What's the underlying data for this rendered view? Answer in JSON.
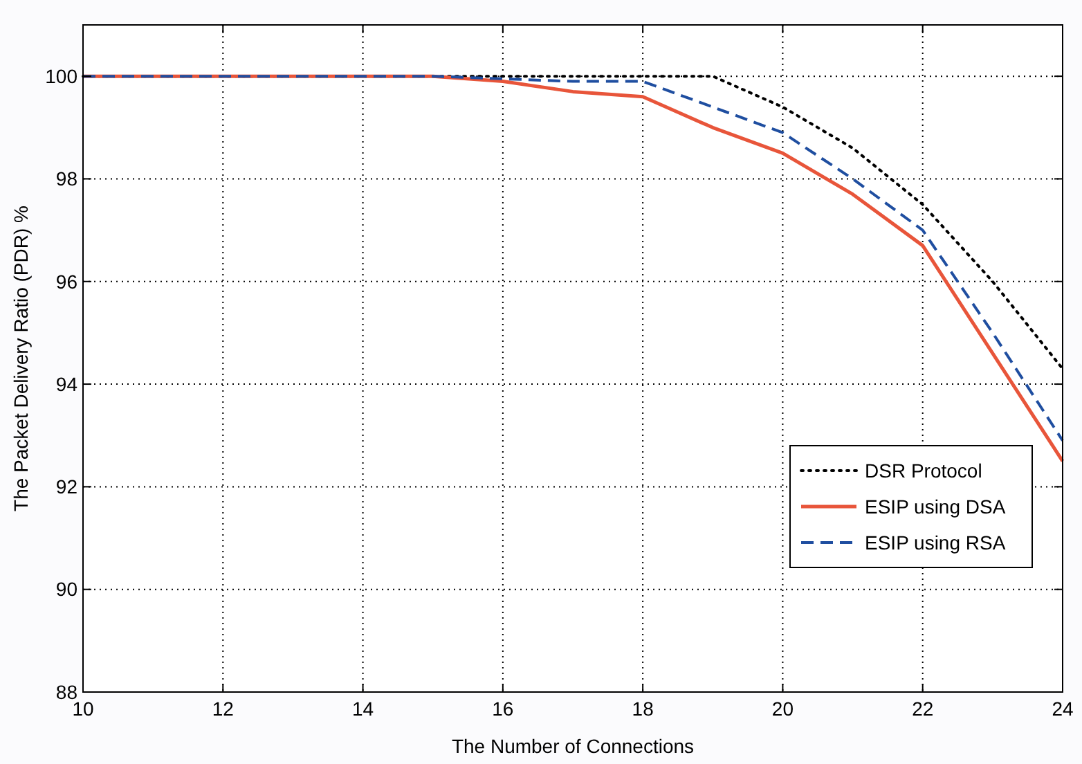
{
  "chart_data": {
    "type": "line",
    "xlabel": "The Number of Connections",
    "ylabel": "The Packet Delivery Ratio (PDR) %",
    "x": [
      10,
      11,
      12,
      13,
      14,
      15,
      16,
      17,
      18,
      19,
      20,
      21,
      22,
      23,
      24
    ],
    "series": [
      {
        "name": "DSR Protocol",
        "color": "#000000",
        "line_style": "dotted",
        "values": [
          100,
          100,
          100,
          100,
          100,
          100,
          100,
          100,
          100,
          100,
          99.4,
          98.6,
          97.5,
          96.0,
          94.3
        ]
      },
      {
        "name": "ESIP using DSA",
        "color": "#e8553a",
        "line_style": "solid",
        "values": [
          100,
          100,
          100,
          100,
          100,
          100,
          99.9,
          99.7,
          99.6,
          99.0,
          98.5,
          97.7,
          96.7,
          94.6,
          92.5
        ]
      },
      {
        "name": "ESIP using RSA",
        "color": "#1f4ea0",
        "line_style": "dashed",
        "values": [
          100,
          100,
          100,
          100,
          100,
          100,
          99.95,
          99.9,
          99.9,
          99.4,
          98.9,
          98.0,
          97.0,
          95.0,
          92.9
        ]
      }
    ],
    "xlim": [
      10,
      24
    ],
    "xticks": [
      10,
      12,
      14,
      16,
      18,
      20,
      22,
      24
    ],
    "ylim": [
      88,
      101
    ],
    "yticks": [
      88,
      90,
      92,
      94,
      96,
      98,
      100
    ],
    "grid": true,
    "legend": "bottom right",
    "marker": "none"
  }
}
